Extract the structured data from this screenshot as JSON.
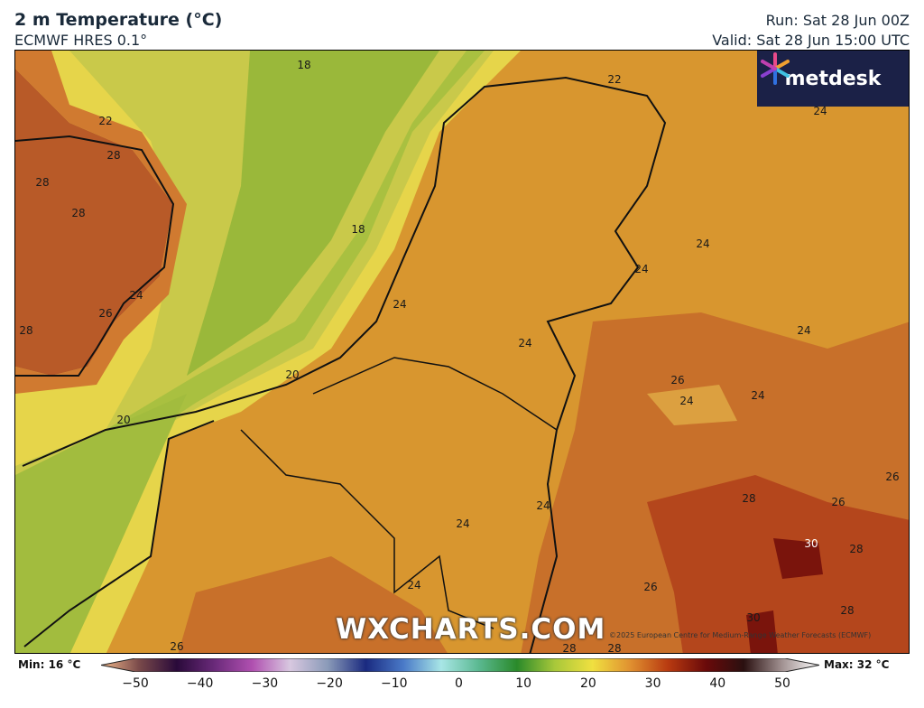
{
  "header": {
    "title": "2 m Temperature (°C)",
    "model": "ECMWF HRES 0.1°",
    "run": "Run: Sat 28 Jun 00Z",
    "valid": "Valid: Sat 28 Jun 15:00 UTC"
  },
  "branding": {
    "logo": "metdesk",
    "watermark": "WXCHARTS.COM",
    "copyright": "©2025 European Centre for Medium-Range Weather Forecasts (ECMWF)"
  },
  "map": {
    "contour_labels": [
      "18",
      "18",
      "20",
      "20",
      "22",
      "22",
      "28",
      "28",
      "28",
      "28",
      "24",
      "26",
      "24",
      "24",
      "24",
      "24",
      "24",
      "24",
      "26",
      "24",
      "24",
      "26",
      "28",
      "26",
      "30",
      "28",
      "28",
      "30",
      "24",
      "24",
      "26",
      "24",
      "26",
      "28",
      "28"
    ]
  },
  "colorbar": {
    "min_label": "Min: 16 °C",
    "max_label": "Max: 32 °C",
    "ticks": [
      "−50",
      "−40",
      "−30",
      "−20",
      "−10",
      "0",
      "10",
      "20",
      "30",
      "40",
      "50"
    ],
    "range": [
      -50,
      50
    ],
    "colors": [
      "#f2b98c",
      "#7a4a4a",
      "#2a0a3a",
      "#6a2a7a",
      "#b050b0",
      "#d8c8e0",
      "#8a9ab8",
      "#1a2a80",
      "#4a7ac8",
      "#a8e6e6",
      "#5ab890",
      "#2a8a2a",
      "#a8c83a",
      "#f0e040",
      "#e09030",
      "#b83a10",
      "#6a0a0a",
      "#2a1010",
      "#a09090",
      "#ffffff"
    ]
  }
}
